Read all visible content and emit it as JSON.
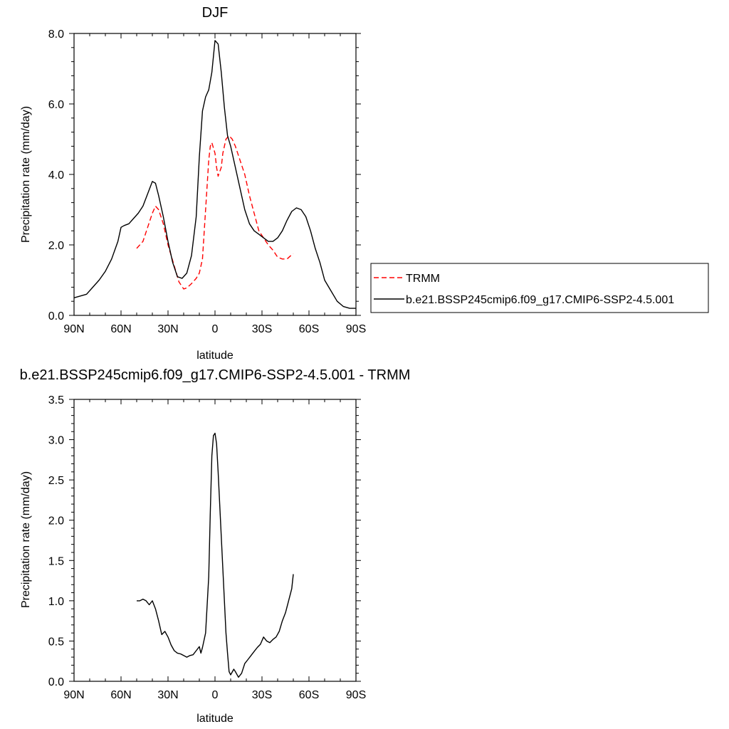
{
  "chart_data": [
    {
      "type": "line",
      "title": "DJF",
      "xlabel": "latitude",
      "ylabel": "Precipitation rate (mm/day)",
      "xlim": [
        90,
        -90
      ],
      "ylim": [
        0,
        8
      ],
      "x_ticks": [
        {
          "value": 90,
          "label": "90N"
        },
        {
          "value": 60,
          "label": "60N"
        },
        {
          "value": 30,
          "label": "30N"
        },
        {
          "value": 0,
          "label": "0"
        },
        {
          "value": -30,
          "label": "30S"
        },
        {
          "value": -60,
          "label": "60S"
        },
        {
          "value": -90,
          "label": "90S"
        }
      ],
      "y_ticks": [
        {
          "value": 0,
          "label": "0.0"
        },
        {
          "value": 2,
          "label": "2.0"
        },
        {
          "value": 4,
          "label": "4.0"
        },
        {
          "value": 6,
          "label": "6.0"
        },
        {
          "value": 8,
          "label": "8.0"
        }
      ],
      "y_minor_step": 0.4,
      "legend": {
        "placement": "right",
        "entries": [
          "TRMM",
          "b.e21.BSSP245cmip6.f09_g17.CMIP6-SSP2-4.5.001"
        ]
      },
      "series": [
        {
          "name": "TRMM",
          "color": "#ff0000",
          "dash": "dashed",
          "x": [
            50,
            46,
            43,
            40,
            38,
            36,
            33,
            30,
            26,
            23,
            20,
            18,
            15,
            12,
            10,
            8,
            6,
            4,
            3,
            2,
            0,
            -1,
            -2,
            -4,
            -5,
            -7,
            -9,
            -11,
            -13,
            -16,
            -19,
            -22,
            -25,
            -28,
            -31,
            -34,
            -37,
            -40,
            -43,
            -46,
            -48,
            -50
          ],
          "y": [
            1.9,
            2.1,
            2.5,
            2.9,
            3.1,
            3.0,
            2.6,
            2.0,
            1.4,
            0.95,
            0.75,
            0.78,
            0.9,
            1.05,
            1.2,
            1.6,
            3.0,
            4.4,
            4.8,
            4.9,
            4.6,
            4.2,
            3.95,
            4.2,
            4.6,
            5.0,
            5.1,
            5.0,
            4.8,
            4.4,
            4.0,
            3.4,
            2.9,
            2.4,
            2.2,
            2.0,
            1.85,
            1.65,
            1.6,
            1.6,
            1.68,
            1.75
          ]
        },
        {
          "name": "b.e21.BSSP245cmip6.f09_g17.CMIP6-SSP2-4.5.001",
          "color": "#000000",
          "dash": "solid",
          "x": [
            90,
            86,
            82,
            78,
            74,
            70,
            66,
            62,
            60,
            58,
            55,
            52,
            49,
            46,
            43,
            40,
            38,
            36,
            33,
            30,
            27,
            24,
            21,
            18,
            15,
            12,
            10,
            8,
            6,
            4,
            2,
            0,
            -2,
            -4,
            -6,
            -8,
            -10,
            -13,
            -16,
            -19,
            -22,
            -25,
            -28,
            -31,
            -34,
            -37,
            -40,
            -43,
            -46,
            -49,
            -52,
            -55,
            -58,
            -61,
            -64,
            -67,
            -70,
            -74,
            -78,
            -82,
            -86,
            -90
          ],
          "y": [
            0.5,
            0.55,
            0.6,
            0.8,
            1.0,
            1.25,
            1.6,
            2.1,
            2.5,
            2.55,
            2.6,
            2.75,
            2.9,
            3.1,
            3.45,
            3.8,
            3.75,
            3.4,
            2.8,
            2.1,
            1.5,
            1.1,
            1.05,
            1.2,
            1.7,
            2.8,
            4.5,
            5.8,
            6.2,
            6.4,
            6.9,
            7.8,
            7.7,
            6.9,
            5.9,
            5.1,
            4.8,
            4.2,
            3.6,
            3.0,
            2.6,
            2.4,
            2.3,
            2.2,
            2.1,
            2.1,
            2.2,
            2.4,
            2.7,
            2.95,
            3.05,
            3.0,
            2.8,
            2.4,
            1.9,
            1.5,
            1.0,
            0.7,
            0.4,
            0.25,
            0.2,
            0.2
          ]
        }
      ]
    },
    {
      "type": "line",
      "title": "b.e21.BSSP245cmip6.f09_g17.CMIP6-SSP2-4.5.001 - TRMM",
      "xlabel": "latitude",
      "ylabel": "Precipitation rate (mm/day)",
      "xlim": [
        90,
        -90
      ],
      "ylim": [
        0,
        3.5
      ],
      "x_ticks": [
        {
          "value": 90,
          "label": "90N"
        },
        {
          "value": 60,
          "label": "60N"
        },
        {
          "value": 30,
          "label": "30N"
        },
        {
          "value": 0,
          "label": "0"
        },
        {
          "value": -30,
          "label": "30S"
        },
        {
          "value": -60,
          "label": "60S"
        },
        {
          "value": -90,
          "label": "90S"
        }
      ],
      "y_ticks": [
        {
          "value": 0,
          "label": "0.0"
        },
        {
          "value": 0.5,
          "label": "0.5"
        },
        {
          "value": 1,
          "label": "1.0"
        },
        {
          "value": 1.5,
          "label": "1.5"
        },
        {
          "value": 2,
          "label": "2.0"
        },
        {
          "value": 2.5,
          "label": "2.5"
        },
        {
          "value": 3,
          "label": "3.0"
        },
        {
          "value": 3.5,
          "label": "3.5"
        }
      ],
      "y_minor_step": 0.1,
      "series": [
        {
          "color": "#000000",
          "dash": "solid",
          "x": [
            50,
            48,
            46,
            44,
            42,
            40,
            38,
            36,
            34,
            32,
            30,
            28,
            26,
            24,
            22,
            20,
            18,
            16,
            14,
            12,
            10,
            9,
            8,
            6,
            4,
            3,
            2,
            1,
            0,
            -1,
            -2,
            -4,
            -6,
            -7,
            -8,
            -9,
            -10,
            -12,
            -13,
            -15,
            -17,
            -19,
            -21,
            -23,
            -25,
            -27,
            -29,
            -31,
            -33,
            -35,
            -37,
            -39,
            -41,
            -43,
            -45,
            -47,
            -49,
            -50
          ],
          "y": [
            1.0,
            1.0,
            1.02,
            1.0,
            0.95,
            1.0,
            0.9,
            0.75,
            0.58,
            0.62,
            0.55,
            0.45,
            0.38,
            0.35,
            0.34,
            0.32,
            0.3,
            0.32,
            0.33,
            0.38,
            0.43,
            0.35,
            0.42,
            0.6,
            1.3,
            2.1,
            2.8,
            3.05,
            3.08,
            2.95,
            2.6,
            1.8,
            1.0,
            0.6,
            0.35,
            0.12,
            0.08,
            0.15,
            0.12,
            0.05,
            0.1,
            0.22,
            0.27,
            0.32,
            0.37,
            0.42,
            0.46,
            0.55,
            0.5,
            0.48,
            0.52,
            0.55,
            0.62,
            0.75,
            0.85,
            1.0,
            1.15,
            1.33
          ]
        }
      ]
    }
  ]
}
